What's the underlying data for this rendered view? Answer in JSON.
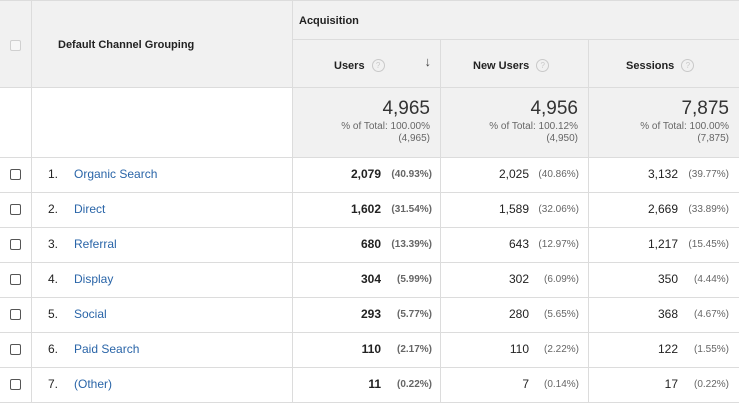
{
  "header": {
    "dimension_label": "Default Channel Grouping",
    "group_label": "Acquisition",
    "columns": [
      "Users",
      "New Users",
      "Sessions"
    ],
    "help_glyph": "?",
    "sort_arrow": "↓"
  },
  "totals": {
    "users": {
      "value": "4,965",
      "pct_line": "% of Total: 100.00%",
      "base": "(4,965)"
    },
    "new_users": {
      "value": "4,956",
      "pct_line": "% of Total: 100.12%",
      "base": "(4,950)"
    },
    "sessions": {
      "value": "7,875",
      "pct_line": "% of Total: 100.00%",
      "base": "(7,875)"
    }
  },
  "rows": [
    {
      "idx": "1.",
      "channel": "Organic Search",
      "users": "2,079",
      "users_pct": "(40.93%)",
      "new_users": "2,025",
      "new_users_pct": "(40.86%)",
      "sessions": "3,132",
      "sessions_pct": "(39.77%)"
    },
    {
      "idx": "2.",
      "channel": "Direct",
      "users": "1,602",
      "users_pct": "(31.54%)",
      "new_users": "1,589",
      "new_users_pct": "(32.06%)",
      "sessions": "2,669",
      "sessions_pct": "(33.89%)"
    },
    {
      "idx": "3.",
      "channel": "Referral",
      "users": "680",
      "users_pct": "(13.39%)",
      "new_users": "643",
      "new_users_pct": "(12.97%)",
      "sessions": "1,217",
      "sessions_pct": "(15.45%)"
    },
    {
      "idx": "4.",
      "channel": "Display",
      "users": "304",
      "users_pct": "(5.99%)",
      "new_users": "302",
      "new_users_pct": "(6.09%)",
      "sessions": "350",
      "sessions_pct": "(4.44%)"
    },
    {
      "idx": "5.",
      "channel": "Social",
      "users": "293",
      "users_pct": "(5.77%)",
      "new_users": "280",
      "new_users_pct": "(5.65%)",
      "sessions": "368",
      "sessions_pct": "(4.67%)"
    },
    {
      "idx": "6.",
      "channel": "Paid Search",
      "users": "110",
      "users_pct": "(2.17%)",
      "new_users": "110",
      "new_users_pct": "(2.22%)",
      "sessions": "122",
      "sessions_pct": "(1.55%)"
    },
    {
      "idx": "7.",
      "channel": "(Other)",
      "users": "11",
      "users_pct": "(0.22%)",
      "new_users": "7",
      "new_users_pct": "(0.14%)",
      "sessions": "17",
      "sessions_pct": "(0.22%)"
    }
  ],
  "colors": {
    "link": "#2a65a8",
    "header_bg": "#f1f1f1",
    "border": "#dcdcdc"
  }
}
